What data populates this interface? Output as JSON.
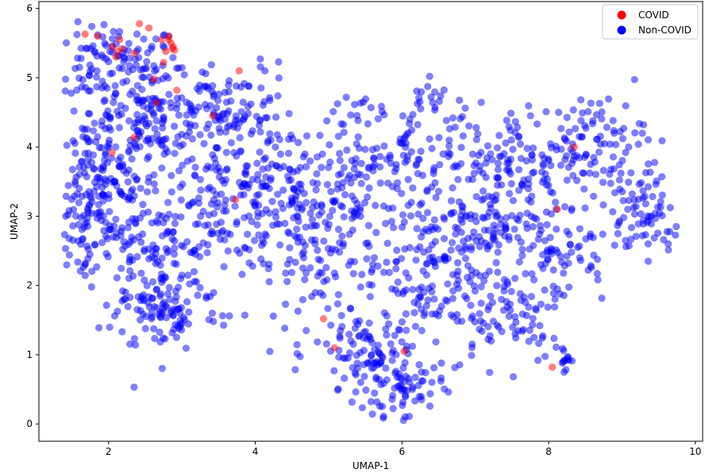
{
  "chart_data": {
    "type": "scatter",
    "xlabel": "UMAP-1",
    "ylabel": "UMAP-2",
    "xlim": [
      1.05,
      10.1
    ],
    "ylim": [
      -0.25,
      6.1
    ],
    "xticks": [
      2,
      4,
      6,
      8,
      10
    ],
    "yticks": [
      0,
      1,
      2,
      3,
      4,
      5,
      6
    ],
    "grid": false,
    "legend_position": "top-right",
    "series": [
      {
        "name": "COVID",
        "color": "#ff0000",
        "opacity": 0.5,
        "points": [
          [
            1.68,
            5.63
          ],
          [
            1.85,
            5.6
          ],
          [
            2.05,
            5.45
          ],
          [
            2.12,
            5.38
          ],
          [
            2.18,
            5.42
          ],
          [
            2.1,
            5.3
          ],
          [
            2.15,
            5.55
          ],
          [
            2.35,
            5.35
          ],
          [
            2.42,
            5.78
          ],
          [
            2.55,
            5.72
          ],
          [
            2.72,
            5.55
          ],
          [
            2.78,
            5.38
          ],
          [
            2.82,
            5.6
          ],
          [
            2.85,
            5.5
          ],
          [
            2.88,
            5.45
          ],
          [
            2.87,
            5.42
          ],
          [
            2.82,
            5.55
          ],
          [
            2.9,
            5.4
          ],
          [
            2.62,
            4.98
          ],
          [
            2.75,
            5.22
          ],
          [
            2.93,
            4.82
          ],
          [
            2.65,
            4.64
          ],
          [
            3.42,
            4.45
          ],
          [
            3.78,
            5.1
          ],
          [
            2.35,
            4.14
          ],
          [
            2.05,
            3.92
          ],
          [
            3.73,
            3.24
          ],
          [
            4.93,
            1.52
          ],
          [
            5.08,
            1.1
          ],
          [
            6.03,
            1.05
          ],
          [
            8.12,
            3.1
          ],
          [
            8.35,
            4.0
          ],
          [
            8.05,
            0.82
          ]
        ]
      },
      {
        "name": "Non-COVID",
        "color": "#0000ff",
        "opacity": 0.5,
        "clusters": [
          {
            "cx": 2.1,
            "cy": 5.2,
            "sx": 0.55,
            "sy": 0.35,
            "n": 120
          },
          {
            "cx": 2.5,
            "cy": 4.4,
            "sx": 0.7,
            "sy": 0.4,
            "n": 150
          },
          {
            "cx": 1.9,
            "cy": 3.5,
            "sx": 0.5,
            "sy": 0.5,
            "n": 130
          },
          {
            "cx": 1.7,
            "cy": 2.8,
            "sx": 0.4,
            "sy": 0.45,
            "n": 80
          },
          {
            "cx": 2.6,
            "cy": 2.3,
            "sx": 0.55,
            "sy": 0.55,
            "n": 120
          },
          {
            "cx": 2.8,
            "cy": 1.6,
            "sx": 0.45,
            "sy": 0.35,
            "n": 80
          },
          {
            "cx": 3.4,
            "cy": 3.2,
            "sx": 0.6,
            "sy": 0.6,
            "n": 140
          },
          {
            "cx": 3.7,
            "cy": 4.5,
            "sx": 0.55,
            "sy": 0.45,
            "n": 100
          },
          {
            "cx": 4.4,
            "cy": 3.5,
            "sx": 0.6,
            "sy": 0.5,
            "n": 90
          },
          {
            "cx": 4.8,
            "cy": 2.4,
            "sx": 0.55,
            "sy": 0.6,
            "n": 100
          },
          {
            "cx": 5.5,
            "cy": 3.3,
            "sx": 0.6,
            "sy": 0.6,
            "n": 110
          },
          {
            "cx": 5.6,
            "cy": 1.0,
            "sx": 0.5,
            "sy": 0.45,
            "n": 110
          },
          {
            "cx": 6.0,
            "cy": 0.5,
            "sx": 0.35,
            "sy": 0.25,
            "n": 60
          },
          {
            "cx": 6.4,
            "cy": 2.3,
            "sx": 0.6,
            "sy": 0.6,
            "n": 120
          },
          {
            "cx": 6.2,
            "cy": 4.0,
            "sx": 0.55,
            "sy": 0.4,
            "n": 70
          },
          {
            "cx": 7.0,
            "cy": 3.0,
            "sx": 0.5,
            "sy": 0.6,
            "n": 100
          },
          {
            "cx": 7.4,
            "cy": 1.6,
            "sx": 0.5,
            "sy": 0.45,
            "n": 80
          },
          {
            "cx": 7.7,
            "cy": 3.7,
            "sx": 0.55,
            "sy": 0.55,
            "n": 100
          },
          {
            "cx": 8.1,
            "cy": 2.5,
            "sx": 0.45,
            "sy": 0.5,
            "n": 80
          },
          {
            "cx": 8.6,
            "cy": 4.1,
            "sx": 0.45,
            "sy": 0.4,
            "n": 90
          },
          {
            "cx": 9.3,
            "cy": 3.2,
            "sx": 0.35,
            "sy": 0.35,
            "n": 50
          },
          {
            "cx": 9.3,
            "cy": 2.8,
            "sx": 0.3,
            "sy": 0.25,
            "n": 30
          },
          {
            "cx": 8.2,
            "cy": 0.95,
            "sx": 0.08,
            "sy": 0.1,
            "n": 15
          },
          {
            "cx": 6.45,
            "cy": 4.8,
            "sx": 0.15,
            "sy": 0.12,
            "n": 10
          },
          {
            "cx": 5.45,
            "cy": 4.5,
            "sx": 0.25,
            "sy": 0.15,
            "n": 15
          }
        ]
      }
    ],
    "legend": [
      {
        "label": "COVID",
        "color": "#ff0000"
      },
      {
        "label": "Non-COVID",
        "color": "#0000ff"
      }
    ]
  }
}
